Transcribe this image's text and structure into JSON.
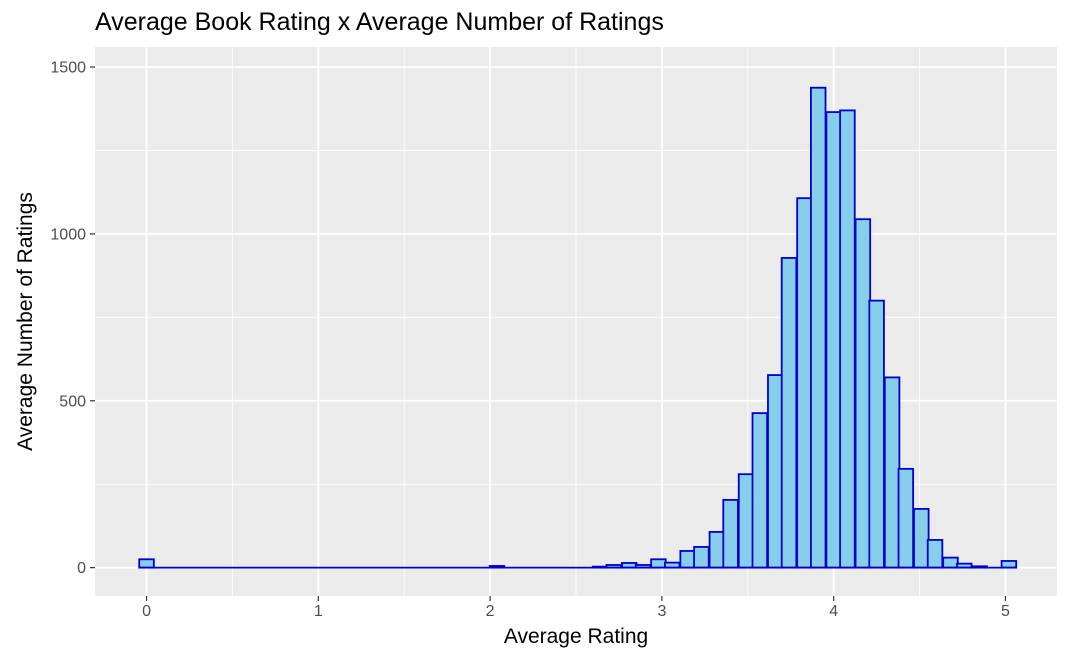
{
  "chart_data": {
    "type": "bar",
    "subtype": "histogram",
    "title": "Average Book Rating x Average Number of Ratings",
    "xlabel": "Average Rating",
    "ylabel": "Average Number of Ratings",
    "xlim": [
      -0.3,
      5.3
    ],
    "ylim": [
      -85,
      1560
    ],
    "xticks": [
      "0",
      "1",
      "2",
      "3",
      "4",
      "5"
    ],
    "yticks": [
      "0",
      "500",
      "1000",
      "1500"
    ],
    "bin_width": 0.085,
    "bin_centers": [
      0.0,
      2.04,
      2.64,
      2.72,
      2.81,
      2.89,
      2.98,
      3.06,
      3.15,
      3.23,
      3.32,
      3.4,
      3.49,
      3.57,
      3.66,
      3.74,
      3.83,
      3.91,
      4.0,
      4.08,
      4.17,
      4.25,
      4.34,
      4.42,
      4.51,
      4.59,
      4.68,
      4.76,
      4.85,
      5.02
    ],
    "values": [
      25,
      5,
      3,
      8,
      14,
      8,
      25,
      15,
      50,
      62,
      107,
      203,
      280,
      463,
      577,
      928,
      1107,
      1438,
      1365,
      1370,
      1044,
      800,
      570,
      296,
      176,
      83,
      30,
      12,
      4,
      20
    ],
    "fill_color": "#87CEEB",
    "outline_color": "#0000CD",
    "panel_background": "#EBEBEB",
    "grid": true
  }
}
